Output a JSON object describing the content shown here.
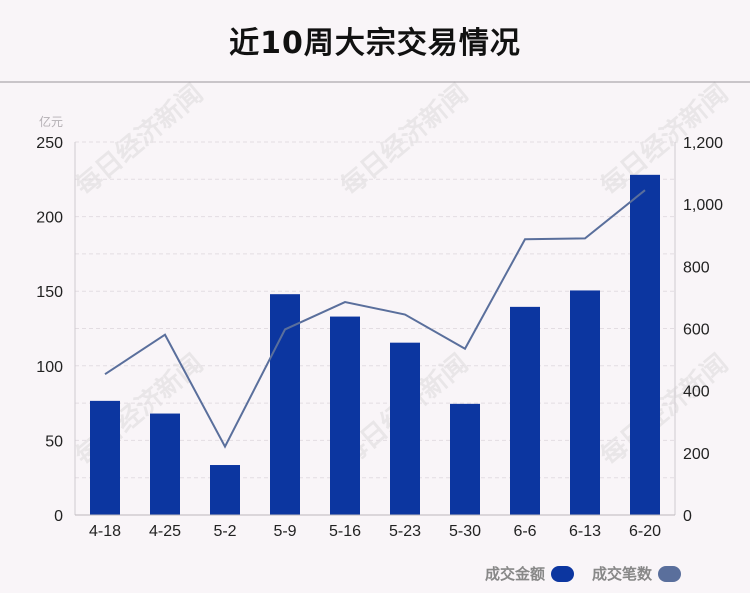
{
  "title": "近10周大宗交易情况",
  "watermark": "每日经济新闻",
  "chart_data": {
    "type": "bar",
    "categories": [
      "4-18",
      "4-25",
      "5-2",
      "5-9",
      "5-16",
      "5-23",
      "5-30",
      "6-6",
      "6-13",
      "6-20"
    ],
    "series": [
      {
        "name": "成交金额",
        "type": "bar",
        "axis": "left",
        "color": "#0c36a0",
        "values": [
          76.5,
          68,
          33.5,
          148,
          133,
          115.5,
          74.5,
          139.5,
          150.5,
          228
        ]
      },
      {
        "name": "成交笔数",
        "type": "line",
        "axis": "right",
        "color": "#5a6f9c",
        "values": [
          453,
          580,
          220,
          597,
          685,
          645,
          535,
          887,
          890,
          1045
        ]
      }
    ],
    "y_left": {
      "unit": "亿元",
      "ticks": [
        "0",
        "50",
        "100",
        "150",
        "200",
        "250"
      ],
      "range": [
        0,
        250
      ]
    },
    "y_right": {
      "ticks": [
        "0",
        "200",
        "400",
        "600",
        "800",
        "1,000",
        "1,200"
      ],
      "range": [
        0,
        1200
      ]
    },
    "grid": true,
    "legend_position": "bottom-right"
  }
}
